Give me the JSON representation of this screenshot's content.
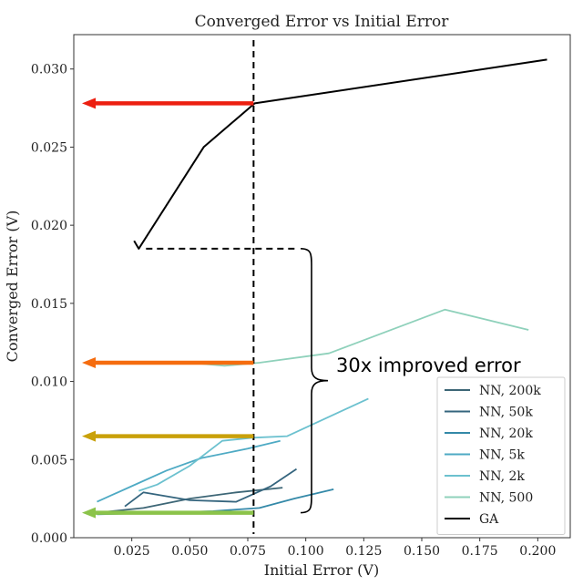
{
  "chart_data": {
    "type": "line",
    "title": "Converged Error vs Initial Error",
    "xlabel": "Initial Error (V)",
    "ylabel": "Converged Error (V)",
    "xlim": [
      0.0,
      0.214
    ],
    "ylim": [
      0.0,
      0.0322
    ],
    "xticks": [
      0.025,
      0.05,
      0.075,
      0.1,
      0.125,
      0.15,
      0.175,
      0.2
    ],
    "xtick_labels": [
      "0.025",
      "0.050",
      "0.075",
      "0.100",
      "0.125",
      "0.150",
      "0.175",
      "0.200"
    ],
    "yticks": [
      0.0,
      0.005,
      0.01,
      0.015,
      0.02,
      0.025,
      0.03
    ],
    "ytick_labels": [
      "0.000",
      "0.005",
      "0.010",
      "0.015",
      "0.020",
      "0.025",
      "0.030"
    ],
    "grid": false,
    "legend_position": "bottom-right",
    "series": [
      {
        "name": "NN, 200k",
        "color": "#3d6676",
        "x": [
          0.01,
          0.03,
          0.05,
          0.07,
          0.09
        ],
        "y": [
          0.0016,
          0.0019,
          0.0025,
          0.0029,
          0.0032
        ]
      },
      {
        "name": "NN, 50k",
        "color": "#35657e",
        "x": [
          0.022,
          0.03,
          0.05,
          0.07,
          0.085,
          0.096
        ],
        "y": [
          0.002,
          0.0029,
          0.0024,
          0.0023,
          0.0033,
          0.0044
        ]
      },
      {
        "name": "NN, 20k",
        "color": "#3489a8",
        "x": [
          0.01,
          0.04,
          0.06,
          0.08,
          0.095,
          0.112
        ],
        "y": [
          0.0015,
          0.0016,
          0.0017,
          0.0019,
          0.0025,
          0.0031
        ]
      },
      {
        "name": "NN, 5k",
        "color": "#4eaac4",
        "x": [
          0.01,
          0.016,
          0.028,
          0.04,
          0.055,
          0.075,
          0.089
        ],
        "y": [
          0.0023,
          0.0027,
          0.0035,
          0.0043,
          0.0051,
          0.0057,
          0.0062
        ]
      },
      {
        "name": "NN, 2k",
        "color": "#6cc1cf",
        "x": [
          0.028,
          0.036,
          0.05,
          0.064,
          0.077,
          0.092,
          0.127
        ],
        "y": [
          0.003,
          0.0034,
          0.0046,
          0.0062,
          0.0064,
          0.0065,
          0.0089
        ]
      },
      {
        "name": "NN, 500",
        "color": "#8fd1bb",
        "x": [
          0.05,
          0.065,
          0.08,
          0.11,
          0.16,
          0.196
        ],
        "y": [
          0.0112,
          0.011,
          0.0112,
          0.0118,
          0.0146,
          0.0133
        ]
      },
      {
        "name": "GA",
        "color": "#000000",
        "x": [
          0.026,
          0.028,
          0.056,
          0.078,
          0.204
        ],
        "y": [
          0.019,
          0.0185,
          0.025,
          0.0278,
          0.0306
        ]
      }
    ],
    "vline": {
      "x": 0.0775,
      "style": "dashed",
      "color": "#000000"
    },
    "arrows": [
      {
        "y": 0.0278,
        "color": "#ec1f10"
      },
      {
        "y": 0.0112,
        "color": "#f56c0e"
      },
      {
        "y": 0.0065,
        "color": "#c9a10a"
      },
      {
        "y": 0.0016,
        "color": "#8bc34a"
      }
    ],
    "bracket": {
      "y_top": 0.0185,
      "y_bottom": 0.0016
    },
    "annotation": "30x improved error"
  }
}
